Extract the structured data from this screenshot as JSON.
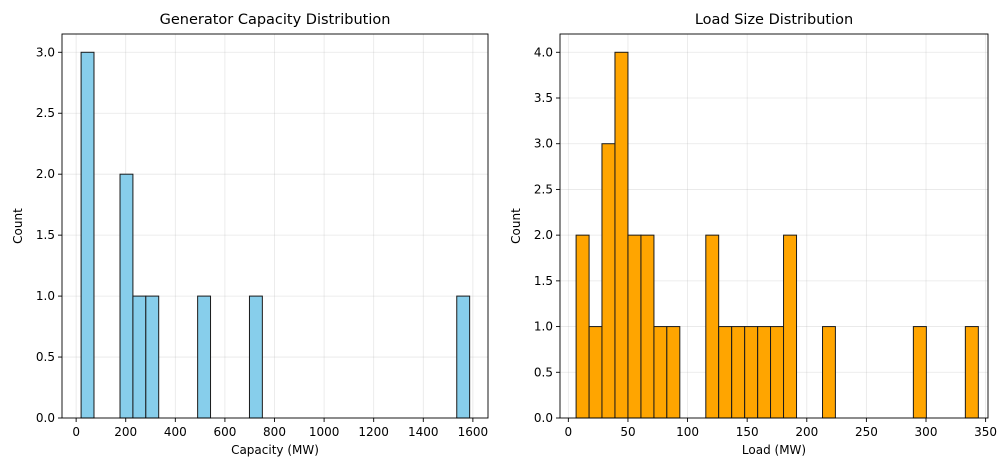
{
  "chart_data": [
    {
      "type": "bar",
      "title": "Generator Capacity Distribution",
      "xlabel": "Capacity (MW)",
      "ylabel": "Count",
      "bar_color": "#87CEEB",
      "edge_color": "#1a1a1a",
      "grid": true,
      "xlim": [
        -57,
        1661
      ],
      "ylim": [
        0,
        3.15
      ],
      "xticks": [
        0,
        200,
        400,
        600,
        800,
        1000,
        1200,
        1400,
        1600
      ],
      "yticks": [
        0.0,
        0.5,
        1.0,
        1.5,
        2.0,
        2.5,
        3.0
      ],
      "ytick_labels": [
        "0.0",
        "0.5",
        "1.0",
        "1.5",
        "2.0",
        "2.5",
        "3.0"
      ],
      "bins": [
        {
          "x0": 20,
          "x1": 72,
          "count": 3
        },
        {
          "x0": 177,
          "x1": 229,
          "count": 2
        },
        {
          "x0": 229,
          "x1": 281,
          "count": 1
        },
        {
          "x0": 281,
          "x1": 333,
          "count": 1
        },
        {
          "x0": 490,
          "x1": 542,
          "count": 1
        },
        {
          "x0": 699,
          "x1": 751,
          "count": 1
        },
        {
          "x0": 1535,
          "x1": 1587,
          "count": 1
        }
      ]
    },
    {
      "type": "bar",
      "title": "Load Size Distribution",
      "xlabel": "Load (MW)",
      "ylabel": "Count",
      "bar_color": "#FFA500",
      "edge_color": "#1a1a1a",
      "grid": true,
      "xlim": [
        -7,
        352
      ],
      "ylim": [
        0,
        4.2
      ],
      "xticks": [
        0,
        50,
        100,
        150,
        200,
        250,
        300,
        350
      ],
      "yticks": [
        0.0,
        0.5,
        1.0,
        1.5,
        2.0,
        2.5,
        3.0,
        3.5,
        4.0
      ],
      "ytick_labels": [
        "0.0",
        "0.5",
        "1.0",
        "1.5",
        "2.0",
        "2.5",
        "3.0",
        "3.5",
        "4.0"
      ],
      "bins": [
        {
          "x0": 6.5,
          "x1": 17.4,
          "count": 2
        },
        {
          "x0": 17.4,
          "x1": 28.2,
          "count": 1
        },
        {
          "x0": 28.2,
          "x1": 39.1,
          "count": 3
        },
        {
          "x0": 39.1,
          "x1": 50.0,
          "count": 4
        },
        {
          "x0": 50.0,
          "x1": 60.9,
          "count": 2
        },
        {
          "x0": 60.9,
          "x1": 71.8,
          "count": 2
        },
        {
          "x0": 71.8,
          "x1": 82.6,
          "count": 1
        },
        {
          "x0": 82.6,
          "x1": 93.5,
          "count": 1
        },
        {
          "x0": 115.3,
          "x1": 126.1,
          "count": 2
        },
        {
          "x0": 126.1,
          "x1": 137.0,
          "count": 1
        },
        {
          "x0": 137.0,
          "x1": 147.9,
          "count": 1
        },
        {
          "x0": 147.9,
          "x1": 158.8,
          "count": 1
        },
        {
          "x0": 158.8,
          "x1": 169.6,
          "count": 1
        },
        {
          "x0": 169.6,
          "x1": 180.5,
          "count": 1
        },
        {
          "x0": 180.5,
          "x1": 191.4,
          "count": 2
        },
        {
          "x0": 213.2,
          "x1": 224.0,
          "count": 1
        },
        {
          "x0": 289.4,
          "x1": 300.3,
          "count": 1
        },
        {
          "x0": 333.0,
          "x1": 343.9,
          "count": 1
        }
      ]
    }
  ]
}
